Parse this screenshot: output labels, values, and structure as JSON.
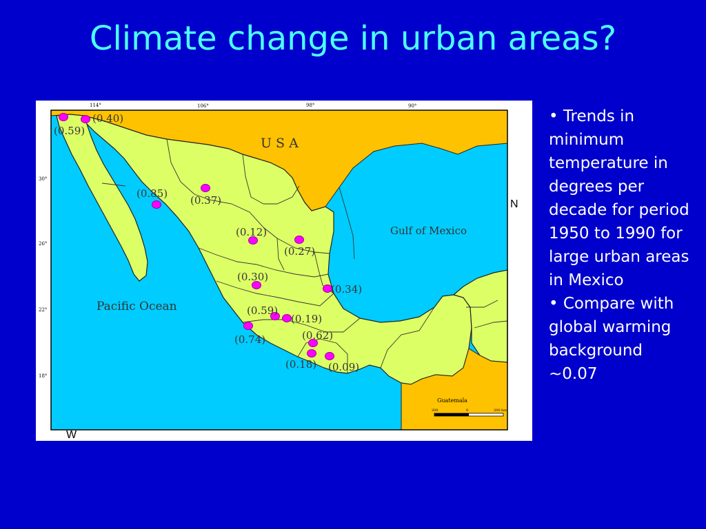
{
  "slide": {
    "title": "Climate change in urban areas?",
    "bullets": [
      "• Trends in minimum temperature in degrees per decade for period 1950 to 1990 for large urban areas in Mexico",
      "• Compare with global warming background ~0.07"
    ]
  },
  "map": {
    "colors": {
      "land_mexico": "#ddff66",
      "land_usa": "#ffc200",
      "land_guatemala": "#ffc200",
      "water": "#00ccff",
      "city_marker": "#ff00ff",
      "frame": "#ffffff"
    },
    "labels": {
      "usa": "U S A",
      "gulf": "Gulf of Mexico",
      "pacific": "Pacific Ocean",
      "guatemala": "Guatemala",
      "north": "N",
      "west": "W"
    },
    "longitude_ticks": [
      "114°",
      "106°",
      "98°",
      "90°"
    ],
    "latitude_ticks": [
      "30°",
      "26°",
      "22°",
      "18°"
    ],
    "scale_ticks": [
      "200",
      "0",
      "200 km"
    ],
    "cities": [
      {
        "trend": "(0.59)"
      },
      {
        "trend": "(0.40)"
      },
      {
        "trend": "(0.85)"
      },
      {
        "trend": "(0.37)"
      },
      {
        "trend": "(0.12)"
      },
      {
        "trend": "(0.27)"
      },
      {
        "trend": "(0.30)"
      },
      {
        "trend": "(0.34)"
      },
      {
        "trend": "(0.59)"
      },
      {
        "trend": "(0.19)"
      },
      {
        "trend": "(0.74)"
      },
      {
        "trend": "(0.62)"
      },
      {
        "trend": "(0.18)"
      },
      {
        "trend": "(0.09)"
      }
    ]
  }
}
